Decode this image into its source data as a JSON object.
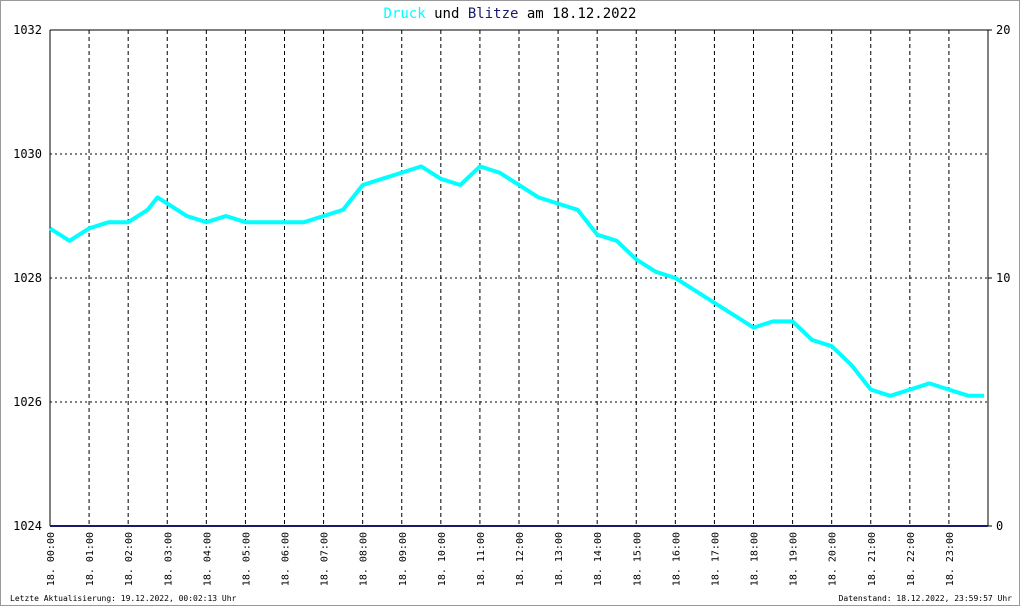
{
  "chart_data": {
    "type": "line",
    "title_connector": "und",
    "title_date": "am 18.12.2022",
    "footer_left": "Letzte Aktualisierung: 19.12.2022, 00:02:13 Uhr",
    "footer_right": "Datenstand: 18.12.2022, 23:59:57 Uhr",
    "xlim": [
      0,
      24
    ],
    "xticks": [
      {
        "value": 0,
        "label": "18. 00:00"
      },
      {
        "value": 1,
        "label": "18. 01:00"
      },
      {
        "value": 2,
        "label": "18. 02:00"
      },
      {
        "value": 3,
        "label": "18. 03:00"
      },
      {
        "value": 4,
        "label": "18. 04:00"
      },
      {
        "value": 5,
        "label": "18. 05:00"
      },
      {
        "value": 6,
        "label": "18. 06:00"
      },
      {
        "value": 7,
        "label": "18. 07:00"
      },
      {
        "value": 8,
        "label": "18. 08:00"
      },
      {
        "value": 9,
        "label": "18. 09:00"
      },
      {
        "value": 10,
        "label": "18. 10:00"
      },
      {
        "value": 11,
        "label": "18. 11:00"
      },
      {
        "value": 12,
        "label": "18. 12:00"
      },
      {
        "value": 13,
        "label": "18. 13:00"
      },
      {
        "value": 14,
        "label": "18. 14:00"
      },
      {
        "value": 15,
        "label": "18. 15:00"
      },
      {
        "value": 16,
        "label": "18. 16:00"
      },
      {
        "value": 17,
        "label": "18. 17:00"
      },
      {
        "value": 18,
        "label": "18. 18:00"
      },
      {
        "value": 19,
        "label": "18. 19:00"
      },
      {
        "value": 20,
        "label": "18. 20:00"
      },
      {
        "value": 21,
        "label": "18. 21:00"
      },
      {
        "value": 22,
        "label": "18. 22:00"
      },
      {
        "value": 23,
        "label": "18. 23:00"
      }
    ],
    "ylim": [
      1024,
      1032
    ],
    "yticks": [
      1024,
      1026,
      1028,
      1030,
      1032
    ],
    "y2lim": [
      0,
      20
    ],
    "y2ticks": [
      0,
      10,
      20
    ],
    "grid": true,
    "series": [
      {
        "name": "Druck",
        "color": "#00ffff",
        "x": [
          0,
          0.5,
          1,
          1.5,
          2,
          2.5,
          2.75,
          3,
          3.5,
          4,
          4.5,
          5,
          5.5,
          6,
          6.5,
          7,
          7.5,
          8,
          8.5,
          9,
          9.5,
          10,
          10.5,
          11,
          11.5,
          12,
          12.5,
          13,
          13.5,
          14,
          14.5,
          15,
          15.5,
          16,
          16.5,
          17,
          17.5,
          18,
          18.5,
          19,
          19.5,
          20,
          20.5,
          21,
          21.5,
          22,
          22.5,
          23,
          23.5,
          23.9
        ],
        "values": [
          1028.8,
          1028.6,
          1028.8,
          1028.9,
          1028.9,
          1029.1,
          1029.3,
          1029.2,
          1029.0,
          1028.9,
          1029.0,
          1028.9,
          1028.9,
          1028.9,
          1028.9,
          1029.0,
          1029.1,
          1029.5,
          1029.6,
          1029.7,
          1029.8,
          1029.6,
          1029.5,
          1029.8,
          1029.7,
          1029.5,
          1029.3,
          1029.2,
          1029.1,
          1028.7,
          1028.6,
          1028.3,
          1028.1,
          1028.0,
          1027.8,
          1027.6,
          1027.4,
          1027.2,
          1027.3,
          1027.3,
          1027.0,
          1026.9,
          1026.6,
          1026.2,
          1026.1,
          1026.2,
          1026.3,
          1026.2,
          1026.1,
          1026.1
        ]
      },
      {
        "name": "Blitze",
        "color": "#191970",
        "axis": "y2",
        "x": [
          0,
          24
        ],
        "values": [
          0,
          0
        ]
      }
    ]
  }
}
